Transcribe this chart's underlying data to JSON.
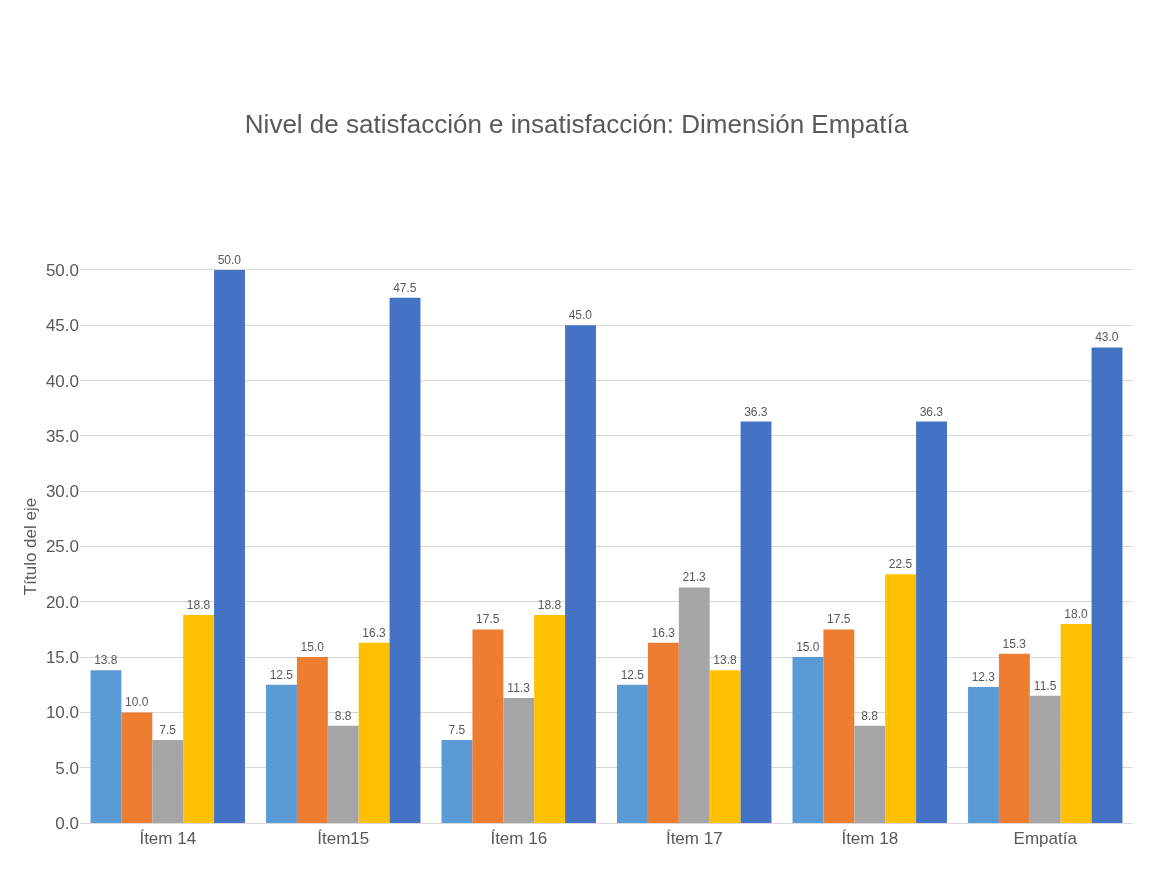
{
  "chart_data": {
    "type": "bar",
    "title": "Nivel de satisfacción e insatisfacción: Dimensión Empatía",
    "ylabel": "Título del eje",
    "categories": [
      "Ítem 14",
      "Ítem15",
      "Ítem 16",
      "Ítem 17",
      "Ítem 18",
      "Empatía"
    ],
    "series": [
      {
        "color": "#5b9bd5",
        "values": [
          13.8,
          12.5,
          7.5,
          12.5,
          15.0,
          12.3
        ],
        "value_labels": [
          "13.8",
          "12.5",
          "7.5",
          "12.5",
          "15.0",
          "12.3"
        ]
      },
      {
        "color": "#ed7d31",
        "values": [
          10.0,
          15.0,
          17.5,
          16.3,
          17.5,
          15.3
        ],
        "value_labels": [
          "10.0",
          "15.0",
          "17.5",
          "16.3",
          "17.5",
          "15.3"
        ]
      },
      {
        "color": "#a5a5a5",
        "values": [
          7.5,
          8.8,
          11.3,
          21.3,
          8.8,
          11.5
        ],
        "value_labels": [
          "7.5",
          "8.8",
          "11.3",
          "21.3",
          "8.8",
          "11.5"
        ]
      },
      {
        "color": "#ffc000",
        "values": [
          18.8,
          16.3,
          18.8,
          13.8,
          22.5,
          18.0
        ],
        "value_labels": [
          "18.8",
          "16.3",
          "18.8",
          "13.8",
          "22.5",
          "18.0"
        ]
      },
      {
        "color": "#4472c4",
        "values": [
          50.0,
          47.5,
          45.0,
          36.3,
          36.3,
          43.0
        ],
        "value_labels": [
          "50.0",
          "47.5",
          "45.0",
          "36.3",
          "36.3",
          "43.0"
        ]
      }
    ],
    "ylim": [
      0,
      50
    ],
    "yticks": [
      {
        "value": 0,
        "label": "0.0"
      },
      {
        "value": 5,
        "label": "5.0"
      },
      {
        "value": 10,
        "label": "10.0"
      },
      {
        "value": 15,
        "label": "15.0"
      },
      {
        "value": 20,
        "label": "20.0"
      },
      {
        "value": 25,
        "label": "25.0"
      },
      {
        "value": 30,
        "label": "30.0"
      },
      {
        "value": 35,
        "label": "35.0"
      },
      {
        "value": 40,
        "label": "40.0"
      },
      {
        "value": 45,
        "label": "45.0"
      },
      {
        "value": 50,
        "label": "50.0"
      }
    ],
    "grid": "y",
    "legend": false
  }
}
